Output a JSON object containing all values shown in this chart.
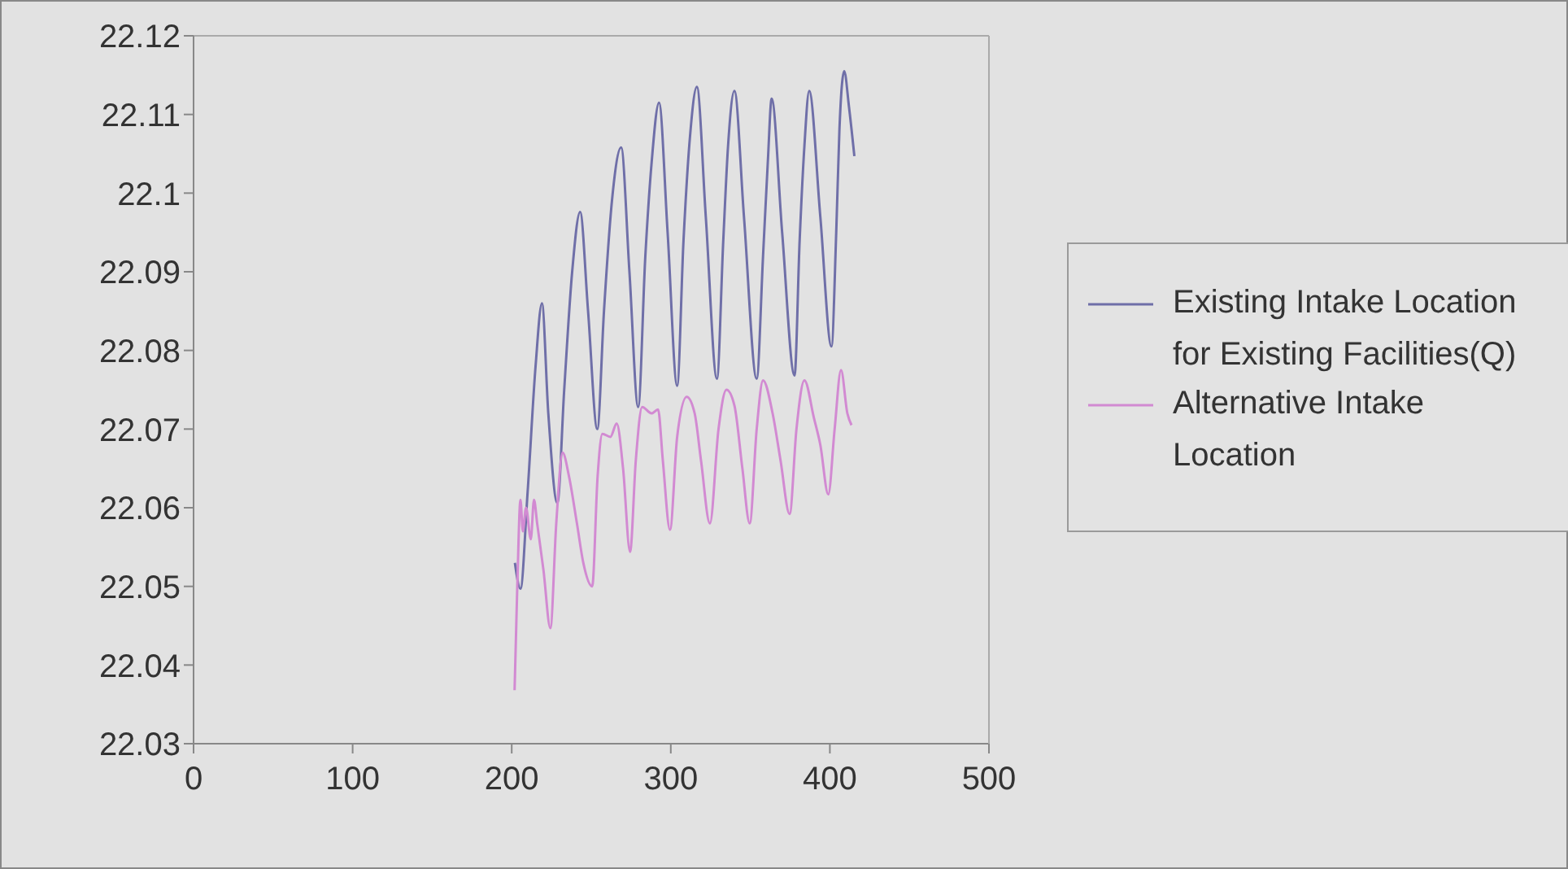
{
  "chart_data": {
    "type": "line",
    "xlim": [
      0,
      500
    ],
    "xticks": [
      0,
      100,
      200,
      300,
      400,
      500
    ],
    "ylim": [
      22.03,
      22.12
    ],
    "yticks": [
      22.03,
      22.04,
      22.05,
      22.06,
      22.07,
      22.08,
      22.09,
      22.1,
      22.11,
      22.12
    ],
    "grid": false,
    "legend": "right",
    "marker": "none",
    "line_style": "solid",
    "series": [
      {
        "name": "Existing Intake Location for Existing Facilities(Q)",
        "color": "#6f6fa8",
        "x": [
          202,
          205.5,
          210,
          215,
          219,
          223,
          228.7,
          233,
          238,
          243,
          248,
          253.8,
          258,
          263,
          268.8,
          274,
          279.5,
          284,
          288,
          292.6,
          298,
          304,
          308,
          312,
          316.4,
          322,
          329,
          333,
          336,
          340,
          346,
          354,
          358,
          361,
          363.4,
          370,
          377.8,
          381,
          384,
          387,
          394,
          401,
          404,
          406,
          409,
          412,
          415.4
        ],
        "values": [
          22.053,
          22.0497,
          22.062,
          22.078,
          22.086,
          22.072,
          22.0606,
          22.075,
          22.09,
          22.0976,
          22.085,
          22.07,
          22.085,
          22.099,
          22.1058,
          22.09,
          22.0728,
          22.092,
          22.104,
          22.1115,
          22.095,
          22.0755,
          22.094,
          22.107,
          22.1135,
          22.097,
          22.0764,
          22.094,
          22.106,
          22.113,
          22.097,
          22.0764,
          22.092,
          22.104,
          22.112,
          22.095,
          22.0768,
          22.094,
          22.106,
          22.113,
          22.097,
          22.0805,
          22.095,
          22.108,
          22.1155,
          22.111,
          22.1047
        ]
      },
      {
        "name": "Alternative Intake Location",
        "color": "#d28ad2",
        "x": [
          201.8,
          203.5,
          205.5,
          207,
          209,
          212,
          214,
          216,
          220,
          224.3,
          228,
          232,
          236,
          241,
          245,
          250.6,
          254,
          257,
          262,
          266,
          270,
          274.4,
          278,
          282,
          288,
          292,
          295,
          299.5,
          304,
          310,
          315,
          319,
          324.6,
          330,
          335,
          340,
          345,
          349.6,
          354,
          358,
          364,
          369,
          374.7,
          379,
          384,
          390,
          394,
          399,
          403,
          407,
          411,
          413.6
        ],
        "values": [
          22.0368,
          22.05,
          22.061,
          22.057,
          22.06,
          22.056,
          22.061,
          22.058,
          22.052,
          22.0447,
          22.058,
          22.067,
          22.064,
          22.058,
          22.053,
          22.05,
          22.064,
          22.0694,
          22.069,
          22.0707,
          22.065,
          22.0544,
          22.066,
          22.0728,
          22.072,
          22.0725,
          22.066,
          22.0572,
          22.069,
          22.0741,
          22.072,
          22.066,
          22.058,
          22.07,
          22.075,
          22.073,
          22.065,
          22.058,
          22.07,
          22.0762,
          22.072,
          22.066,
          22.0592,
          22.07,
          22.0762,
          22.0714,
          22.068,
          22.0617,
          22.07,
          22.0775,
          22.072,
          22.0705
        ]
      }
    ]
  }
}
